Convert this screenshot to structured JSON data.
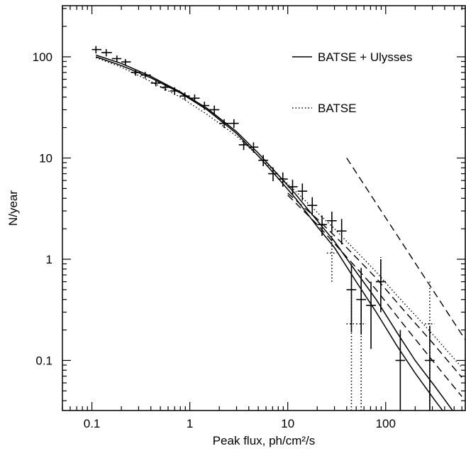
{
  "chart_data": {
    "type": "scatter",
    "xlabel": "Peak flux, ph/cm²/s",
    "ylabel": "N/year",
    "xscale": "log",
    "yscale": "log",
    "xlim": [
      0.05,
      650
    ],
    "ylim": [
      0.032,
      320
    ],
    "x_ticks": [
      {
        "value": 0.1,
        "label": "0.1"
      },
      {
        "value": 1,
        "label": "1"
      },
      {
        "value": 10,
        "label": "10"
      },
      {
        "value": 100,
        "label": "100"
      }
    ],
    "y_ticks": [
      {
        "value": 0.1,
        "label": "0.1"
      },
      {
        "value": 1,
        "label": "1"
      },
      {
        "value": 10,
        "label": "10"
      },
      {
        "value": 100,
        "label": "100"
      }
    ],
    "legend": {
      "placement": "top-right",
      "entries": [
        {
          "label": "BATSE + Ulysses",
          "style": "solid"
        },
        {
          "label": "BATSE",
          "style": "dotted"
        }
      ]
    },
    "series": [
      {
        "name": "BATSE + Ulysses",
        "kind": "model-curve",
        "style": "solid",
        "x": [
          0.11,
          0.2,
          0.4,
          0.8,
          1.5,
          3,
          5,
          8,
          12,
          20,
          30,
          50,
          80,
          130,
          200,
          320,
          600
        ],
        "y": [
          100,
          82,
          62,
          44,
          30,
          17.5,
          10.5,
          6.3,
          4.0,
          2.1,
          1.3,
          0.6,
          0.3,
          0.14,
          0.075,
          0.04,
          0.018
        ]
      },
      {
        "name": "",
        "kind": "model-curve",
        "style": "solid",
        "x": [
          0.11,
          0.2,
          0.4,
          0.8,
          1.5,
          3,
          5,
          8,
          12,
          20,
          30,
          50,
          80,
          130,
          200,
          320,
          600
        ],
        "y": [
          104,
          86,
          64,
          45,
          31,
          18.2,
          11.2,
          6.8,
          4.4,
          2.4,
          1.5,
          0.75,
          0.4,
          0.19,
          0.1,
          0.055,
          0.024
        ]
      },
      {
        "name": "BATSE",
        "kind": "model-curve",
        "style": "dotted",
        "x": [
          0.11,
          0.2,
          0.4,
          0.8,
          1.5,
          3,
          5,
          8,
          12,
          20,
          30,
          50,
          80,
          130,
          200,
          320,
          600
        ],
        "y": [
          98,
          79,
          57,
          40,
          27,
          16.5,
          10.5,
          6.8,
          4.7,
          2.9,
          2.0,
          1.2,
          0.75,
          0.44,
          0.28,
          0.17,
          0.085
        ]
      },
      {
        "name": "",
        "kind": "model-curve",
        "style": "dashed",
        "x": [
          10,
          20,
          40,
          80,
          150,
          300,
          600
        ],
        "y": [
          4.5,
          2.5,
          1.3,
          0.65,
          0.32,
          0.15,
          0.068
        ]
      },
      {
        "name": "",
        "kind": "model-curve",
        "style": "dashed",
        "x": [
          10,
          20,
          40,
          80,
          150,
          300,
          600
        ],
        "y": [
          4.3,
          2.2,
          1.05,
          0.5,
          0.23,
          0.1,
          0.044
        ]
      },
      {
        "name": "",
        "kind": "power-law-reference",
        "style": "dashed",
        "x": [
          40,
          650
        ],
        "y": [
          10,
          0.16
        ]
      }
    ],
    "points_solid": [
      {
        "x": 0.11,
        "y": 118,
        "xerr": [
          0.1,
          0.125
        ],
        "yerr": [
          108,
          128
        ]
      },
      {
        "x": 0.14,
        "y": 110,
        "xerr": [
          0.125,
          0.16
        ],
        "yerr": [
          101,
          119
        ]
      },
      {
        "x": 0.18,
        "y": 96,
        "xerr": [
          0.16,
          0.2
        ],
        "yerr": [
          89,
          103
        ]
      },
      {
        "x": 0.22,
        "y": 89,
        "xerr": [
          0.2,
          0.25
        ],
        "yerr": [
          83,
          95
        ]
      },
      {
        "x": 0.28,
        "y": 70,
        "xerr": [
          0.25,
          0.315
        ],
        "yerr": [
          65,
          75
        ]
      },
      {
        "x": 0.35,
        "y": 66,
        "xerr": [
          0.315,
          0.4
        ],
        "yerr": [
          61,
          71
        ]
      },
      {
        "x": 0.45,
        "y": 55,
        "xerr": [
          0.4,
          0.5
        ],
        "yerr": [
          51,
          59
        ]
      },
      {
        "x": 0.56,
        "y": 50,
        "xerr": [
          0.5,
          0.63
        ],
        "yerr": [
          46,
          54
        ]
      },
      {
        "x": 0.7,
        "y": 46,
        "xerr": [
          0.63,
          0.79
        ],
        "yerr": [
          42,
          50
        ]
      },
      {
        "x": 0.89,
        "y": 41,
        "xerr": [
          0.79,
          1.0
        ],
        "yerr": [
          37.5,
          44.5
        ]
      },
      {
        "x": 1.12,
        "y": 39,
        "xerr": [
          1.0,
          1.26
        ],
        "yerr": [
          35.5,
          42.5
        ]
      },
      {
        "x": 1.41,
        "y": 33,
        "xerr": [
          1.26,
          1.58
        ],
        "yerr": [
          30,
          36
        ]
      },
      {
        "x": 1.78,
        "y": 30,
        "xerr": [
          1.58,
          2.0
        ],
        "yerr": [
          27,
          33
        ]
      },
      {
        "x": 2.24,
        "y": 22,
        "xerr": [
          2.0,
          2.51
        ],
        "yerr": [
          19.8,
          24.2
        ]
      },
      {
        "x": 2.82,
        "y": 22,
        "xerr": [
          2.51,
          3.16
        ],
        "yerr": [
          19.8,
          24.2
        ]
      },
      {
        "x": 3.55,
        "y": 13.5,
        "xerr": [
          3.16,
          3.98
        ],
        "yerr": [
          12,
          15
        ]
      },
      {
        "x": 4.47,
        "y": 12.8,
        "xerr": [
          3.98,
          5.01
        ],
        "yerr": [
          11.3,
          14.3
        ]
      },
      {
        "x": 5.62,
        "y": 9.5,
        "xerr": [
          5.01,
          6.31
        ],
        "yerr": [
          8.3,
          10.7
        ]
      },
      {
        "x": 7.08,
        "y": 7.0,
        "xerr": [
          6.31,
          7.94
        ],
        "yerr": [
          5.9,
          8.1
        ]
      },
      {
        "x": 8.91,
        "y": 6.2,
        "xerr": [
          7.94,
          10.0
        ],
        "yerr": [
          5.2,
          7.2
        ]
      },
      {
        "x": 11.2,
        "y": 5.2,
        "xerr": [
          10.0,
          12.6
        ],
        "yerr": [
          4.3,
          6.1
        ]
      },
      {
        "x": 14.1,
        "y": 4.7,
        "xerr": [
          12.6,
          15.8
        ],
        "yerr": [
          3.8,
          5.6
        ]
      },
      {
        "x": 17.8,
        "y": 3.4,
        "xerr": [
          15.8,
          20.0
        ],
        "yerr": [
          2.7,
          4.1
        ]
      },
      {
        "x": 22.4,
        "y": 2.2,
        "xerr": [
          20.0,
          25.1
        ],
        "yerr": [
          1.7,
          2.7
        ]
      },
      {
        "x": 28.2,
        "y": 2.4,
        "xerr": [
          25.1,
          31.6
        ],
        "yerr": [
          1.85,
          2.95
        ]
      },
      {
        "x": 35.5,
        "y": 1.9,
        "xerr": [
          31.6,
          39.8
        ],
        "yerr": [
          1.4,
          2.5
        ]
      },
      {
        "x": 44.7,
        "y": 0.5,
        "xerr": [
          39.8,
          50.1
        ],
        "yerr": [
          0.19,
          0.9
        ]
      },
      {
        "x": 56.2,
        "y": 0.4,
        "xerr": [
          50.1,
          63.1
        ],
        "yerr": [
          0.18,
          0.82
        ]
      },
      {
        "x": 70.8,
        "y": 0.35,
        "xerr": [
          63.1,
          79.4
        ],
        "yerr": [
          0.13,
          0.6
        ]
      },
      {
        "x": 89.1,
        "y": 0.6,
        "xerr": [
          79.4,
          100
        ],
        "yerr": [
          0.3,
          1.0
        ]
      },
      {
        "x": 141,
        "y": 0.1,
        "xerr": [
          126,
          158
        ],
        "yerr": [
          0.02,
          0.2
        ]
      },
      {
        "x": 282,
        "y": 0.1,
        "xerr": [
          251,
          316
        ],
        "yerr": [
          0.02,
          0.22
        ]
      }
    ],
    "points_dotted": [
      {
        "x": 28.2,
        "y": 1.15,
        "xerr": [
          25.1,
          31.6
        ],
        "yerr": [
          0.6,
          1.9
        ]
      },
      {
        "x": 44.7,
        "y": 0.23,
        "xerr": [
          39.8,
          50.1
        ],
        "yerr": [
          0.02,
          0.6
        ]
      },
      {
        "x": 56.2,
        "y": 0.23,
        "xerr": [
          50.1,
          63.1
        ],
        "yerr": [
          0.02,
          0.6
        ]
      },
      {
        "x": 89.1,
        "y": 0.6,
        "xerr": [
          79.4,
          100
        ],
        "yerr": [
          0.3,
          1.05
        ]
      },
      {
        "x": 282,
        "y": 0.23,
        "xerr": [
          251,
          316
        ],
        "yerr": [
          0.02,
          0.6
        ]
      }
    ]
  }
}
